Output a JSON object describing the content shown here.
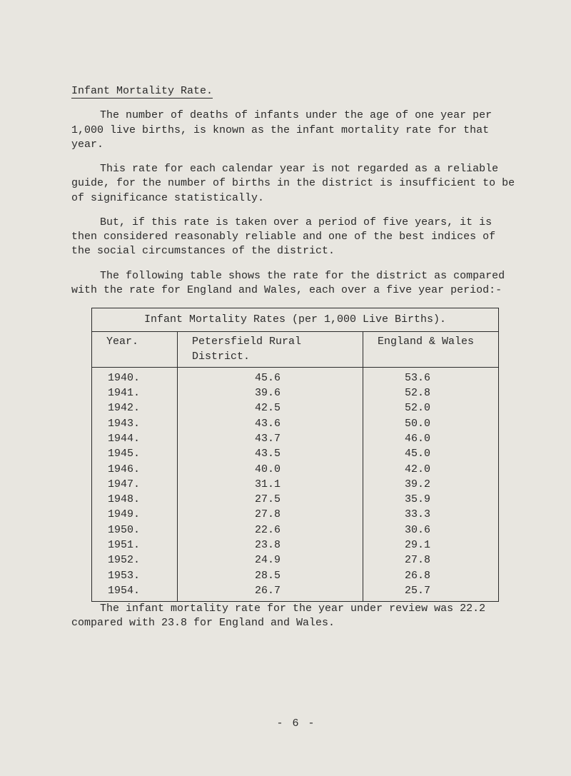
{
  "heading": "Infant Mortality Rate.",
  "para1": "The number of deaths of infants under the age of one year per 1,000 live births, is known as the infant mortality rate for that year.",
  "para2": "This rate for each calendar year is not regarded as a reliable guide, for the number of births in the district is insufficient to be of significance statistically.",
  "para3": "But, if this rate is taken over a period of five years, it is then considered reasonably reliable and one of the best indices of the social circumstances of the district.",
  "para4": "The following table shows the rate for the district as compared with the rate for England and Wales, each over a five year period:-",
  "table": {
    "title": "Infant Mortality Rates (per 1,000 Live Births).",
    "columns": [
      "Year.",
      "Petersfield Rural District.",
      "England & Wales"
    ],
    "rows": [
      [
        "1940.",
        "45.6",
        "53.6"
      ],
      [
        "1941.",
        "39.6",
        "52.8"
      ],
      [
        "1942.",
        "42.5",
        "52.0"
      ],
      [
        "1943.",
        "43.6",
        "50.0"
      ],
      [
        "1944.",
        "43.7",
        "46.0"
      ],
      [
        "1945.",
        "43.5",
        "45.0"
      ],
      [
        "1946.",
        "40.0",
        "42.0"
      ],
      [
        "1947.",
        "31.1",
        "39.2"
      ],
      [
        "1948.",
        "27.5",
        "35.9"
      ],
      [
        "1949.",
        "27.8",
        "33.3"
      ],
      [
        "1950.",
        "22.6",
        "30.6"
      ],
      [
        "1951.",
        "23.8",
        "29.1"
      ],
      [
        "1952.",
        "24.9",
        "27.8"
      ],
      [
        "1953.",
        "28.5",
        "26.8"
      ],
      [
        "1954.",
        "26.7",
        "25.7"
      ]
    ]
  },
  "footnote": "The infant mortality rate for the year under review was 22.2 compared with 23.8 for England and Wales.",
  "pagenum": "- 6 -"
}
